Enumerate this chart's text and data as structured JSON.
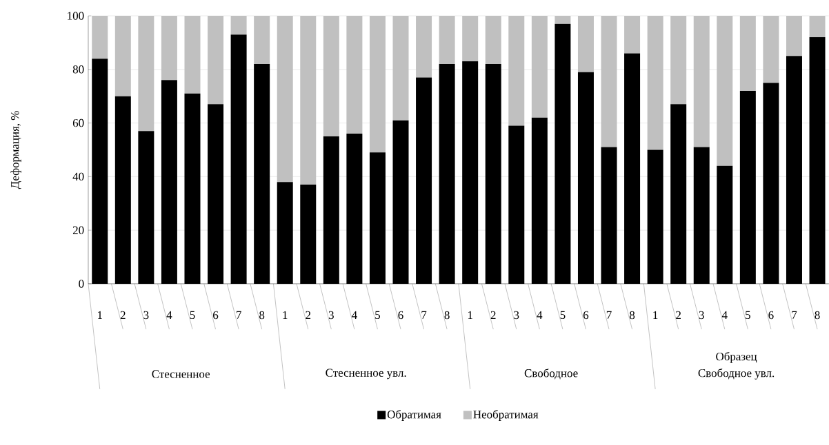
{
  "chart_data": {
    "type": "bar",
    "stacked": true,
    "ylabel": "Деформация, %",
    "xlabel": "Образец",
    "categories": [
      "1",
      "2",
      "3",
      "4",
      "5",
      "6",
      "7",
      "8",
      "1",
      "2",
      "3",
      "4",
      "5",
      "6",
      "7",
      "8",
      "1",
      "2",
      "3",
      "4",
      "5",
      "6",
      "7",
      "8",
      "1",
      "2",
      "3",
      "4",
      "5",
      "6",
      "7",
      "8"
    ],
    "annotations": [
      "Стесненное",
      "Стесненное увл.",
      "Свободное",
      "Свободное увл."
    ],
    "series": [
      {
        "name": "Обратимая",
        "color": "#000000",
        "values": [
          84,
          70,
          57,
          76,
          71,
          67,
          93,
          82,
          38,
          37,
          55,
          56,
          49,
          61,
          77,
          82,
          83,
          82,
          59,
          62,
          97,
          79,
          51,
          86,
          50,
          67,
          51,
          44,
          72,
          75,
          85,
          92
        ]
      },
      {
        "name": "Необратимая",
        "color": "#c0c0c0",
        "values": [
          16,
          30,
          43,
          24,
          29,
          33,
          7,
          18,
          62,
          63,
          45,
          44,
          51,
          39,
          23,
          18,
          17,
          18,
          41,
          38,
          3,
          21,
          49,
          14,
          50,
          33,
          49,
          56,
          28,
          25,
          15,
          8
        ]
      }
    ],
    "ylim": [
      0,
      100
    ],
    "yticks": [
      0,
      20,
      40,
      60,
      80,
      100
    ],
    "grid": "y",
    "legend": "bottom"
  }
}
